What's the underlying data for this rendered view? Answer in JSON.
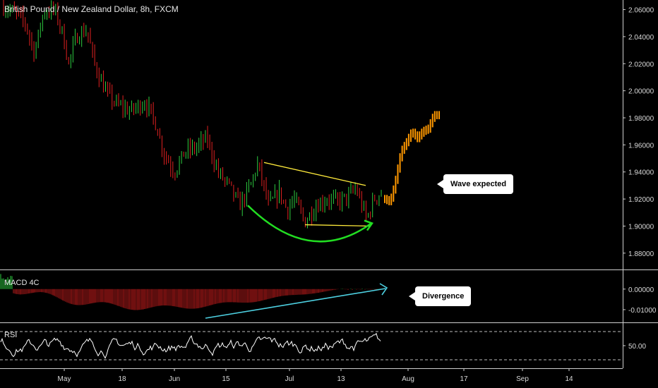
{
  "header": {
    "title": "British Pound / New Zealand Dollar, 8h, FXCM"
  },
  "indicators": {
    "macd_label": "MACD 4C",
    "rsi_label": "RSI"
  },
  "annotations": {
    "wave": "Wave expected",
    "divergence": "Divergence"
  },
  "colors": {
    "up": "#26a69a",
    "down": "#ef5350",
    "green_candle": "#2ecc40",
    "red_candle": "#e02020",
    "projection": "#ff9800",
    "trendline": "#ffeb3b",
    "curve": "#22dd22",
    "divergence": "#4dd0e1",
    "rsi_line": "#ffffff"
  },
  "chart_data": [
    {
      "type": "candlestick",
      "title": "British Pound / New Zealand Dollar, 8h, FXCM",
      "xlabel": "",
      "ylabel": "",
      "x_ticks": [
        "May",
        "18",
        "Jun",
        "15",
        "Jul",
        "13",
        "Aug",
        "17",
        "Sep",
        "14"
      ],
      "y_ticks": [
        "2.06000",
        "2.04000",
        "2.02000",
        "2.00000",
        "1.98000",
        "1.96000",
        "1.94000",
        "1.92000",
        "1.90000",
        "1.88000"
      ],
      "ylim": [
        1.87,
        2.065
      ],
      "price_path": [
        [
          0,
          2.062
        ],
        [
          0.03,
          2.058
        ],
        [
          0.06,
          2.05
        ],
        [
          0.085,
          2.028
        ],
        [
          0.11,
          2.058
        ],
        [
          0.14,
          2.06
        ],
        [
          0.16,
          2.045
        ],
        [
          0.18,
          2.02
        ],
        [
          0.2,
          2.04
        ],
        [
          0.23,
          2.045
        ],
        [
          0.25,
          2.02
        ],
        [
          0.28,
          2.0
        ],
        [
          0.31,
          1.99
        ],
        [
          0.35,
          1.985
        ],
        [
          0.39,
          1.992
        ],
        [
          0.42,
          1.975
        ],
        [
          0.44,
          1.955
        ],
        [
          0.47,
          1.94
        ],
        [
          0.5,
          1.955
        ],
        [
          0.53,
          1.958
        ],
        [
          0.56,
          1.965
        ],
        [
          0.59,
          1.94
        ],
        [
          0.62,
          1.93
        ],
        [
          0.65,
          1.915
        ],
        [
          0.68,
          1.93
        ],
        [
          0.7,
          1.946
        ],
        [
          0.73,
          1.915
        ],
        [
          0.76,
          1.925
        ],
        [
          0.78,
          1.912
        ],
        [
          0.8,
          1.92
        ],
        [
          0.83,
          1.903
        ],
        [
          0.86,
          1.915
        ],
        [
          0.89,
          1.92
        ],
        [
          0.92,
          1.918
        ],
        [
          0.95,
          1.922
        ],
        [
          0.97,
          1.928
        ],
        [
          1.0,
          1.905
        ],
        [
          1.02,
          1.92
        ],
        [
          1.04,
          1.925
        ]
      ],
      "projection_path": [
        [
          0,
          1.92
        ],
        [
          0.1,
          1.918
        ],
        [
          0.18,
          1.93
        ],
        [
          0.3,
          1.955
        ],
        [
          0.4,
          1.962
        ],
        [
          0.5,
          1.97
        ],
        [
          0.6,
          1.965
        ],
        [
          0.7,
          1.97
        ],
        [
          0.8,
          1.972
        ],
        [
          0.9,
          1.982
        ],
        [
          1.0,
          1.982
        ]
      ],
      "trendline_upper": [
        [
          1.947
        ],
        [
          1.93
        ]
      ],
      "trendline_lower": [
        [
          1.901
        ],
        [
          1.9
        ]
      ]
    },
    {
      "type": "bar",
      "title": "MACD 4C",
      "y_ticks": [
        "0.00000",
        "-0.01000"
      ],
      "ylim": [
        -0.0155,
        0.0085
      ]
    },
    {
      "type": "line",
      "title": "RSI",
      "y_ticks": [
        "50.00"
      ],
      "ylim": [
        20,
        80
      ]
    }
  ]
}
